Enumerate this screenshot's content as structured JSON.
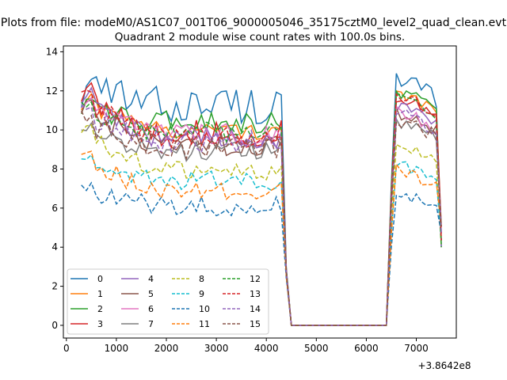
{
  "figure": {
    "suptitle": "Plots from file: modeM0/AS1C07_001T06_9000005046_35175cztM0_level2_quad_clean.evt",
    "offset_label": "+3.8642e8"
  },
  "chart_data": {
    "type": "line",
    "title": "Quadrant 2 module wise count rates with 100.0s bins.",
    "xlabel": "",
    "ylabel": "",
    "xlim": [
      -60,
      7800
    ],
    "ylim": [
      -0.65,
      14.3
    ],
    "xticks": [
      0,
      1000,
      2000,
      3000,
      4000,
      5000,
      6000,
      7000
    ],
    "yticks": [
      0,
      2,
      4,
      6,
      8,
      10,
      12,
      14
    ],
    "x": [
      300,
      400,
      500,
      600,
      700,
      800,
      900,
      1000,
      1100,
      1200,
      1300,
      1400,
      1500,
      1600,
      1700,
      1800,
      1900,
      2000,
      2100,
      2200,
      2300,
      2400,
      2500,
      2600,
      2700,
      2800,
      2900,
      3000,
      3100,
      3200,
      3300,
      3400,
      3500,
      3600,
      3700,
      3800,
      3900,
      4000,
      4100,
      4200,
      4300,
      4400,
      4500,
      4600,
      4700,
      4800,
      4900,
      5000,
      5100,
      5200,
      5300,
      5400,
      5500,
      5600,
      5700,
      5800,
      5900,
      6000,
      6100,
      6200,
      6300,
      6400,
      6500,
      6600,
      6700,
      6800,
      6900,
      7000,
      7100,
      7200,
      7300,
      7400,
      7500
    ],
    "grid": false,
    "legend_position": "lower-left",
    "series": [
      {
        "name": "0",
        "style": "solid",
        "color": "#1f77b4",
        "start": 12.0,
        "plateau": 11.3,
        "spread": 1.0,
        "post": 12.5
      },
      {
        "name": "1",
        "style": "solid",
        "color": "#ff7f0e",
        "start": 11.4,
        "plateau": 10.0,
        "spread": 0.5,
        "post": 11.9
      },
      {
        "name": "2",
        "style": "solid",
        "color": "#2ca02c",
        "start": 11.2,
        "plateau": 10.4,
        "spread": 0.6,
        "post": 12.0
      },
      {
        "name": "3",
        "style": "solid",
        "color": "#d62728",
        "start": 11.8,
        "plateau": 9.8,
        "spread": 0.7,
        "post": 11.6
      },
      {
        "name": "4",
        "style": "solid",
        "color": "#9467bd",
        "start": 11.6,
        "plateau": 9.6,
        "spread": 0.6,
        "post": 11.2
      },
      {
        "name": "5",
        "style": "solid",
        "color": "#8c564b",
        "start": 11.0,
        "plateau": 9.2,
        "spread": 0.6,
        "post": 10.8
      },
      {
        "name": "6",
        "style": "solid",
        "color": "#e377c2",
        "start": 11.2,
        "plateau": 9.8,
        "spread": 0.6,
        "post": 11.0
      },
      {
        "name": "7",
        "style": "solid",
        "color": "#7f7f7f",
        "start": 10.0,
        "plateau": 8.9,
        "spread": 0.5,
        "post": 10.5
      },
      {
        "name": "8",
        "style": "dashed",
        "color": "#bcbd22",
        "start": 9.8,
        "plateau": 7.9,
        "spread": 0.5,
        "post": 9.3
      },
      {
        "name": "9",
        "style": "dashed",
        "color": "#17becf",
        "start": 8.4,
        "plateau": 7.4,
        "spread": 0.5,
        "post": 8.3
      },
      {
        "name": "10",
        "style": "dashed",
        "color": "#1f77b4",
        "start": 7.0,
        "plateau": 6.1,
        "spread": 0.5,
        "post": 6.9
      },
      {
        "name": "11",
        "style": "dashed",
        "color": "#ff7f0e",
        "start": 8.5,
        "plateau": 6.8,
        "spread": 0.5,
        "post": 8.0
      },
      {
        "name": "12",
        "style": "dashed",
        "color": "#2ca02c",
        "start": 11.1,
        "plateau": 9.9,
        "spread": 0.5,
        "post": 11.7
      },
      {
        "name": "13",
        "style": "dashed",
        "color": "#d62728",
        "start": 11.5,
        "plateau": 9.7,
        "spread": 0.6,
        "post": 11.8
      },
      {
        "name": "14",
        "style": "dashed",
        "color": "#9467bd",
        "start": 10.8,
        "plateau": 9.4,
        "spread": 0.6,
        "post": 10.9
      },
      {
        "name": "15",
        "style": "dashed",
        "color": "#8c564b",
        "start": 10.4,
        "plateau": 9.1,
        "spread": 0.6,
        "post": 10.6
      }
    ]
  }
}
